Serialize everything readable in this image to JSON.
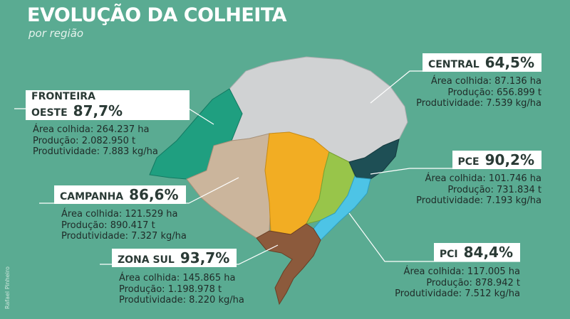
{
  "title": "EVOLUÇÃO DA COLHEITA",
  "subtitle": "por região",
  "credit": "Rafael Pinheiro",
  "colors": {
    "background": "#5aab92",
    "central": "#d0d2d3",
    "fronteira_oeste": "#1f9f80",
    "campanha": "#cbb59c",
    "zona_sul": "#8c5a3c",
    "pce": "#1e4f55",
    "pci": "#4dc4e6",
    "yellow": "#f2ad23",
    "green": "#98c54a"
  },
  "regions": {
    "central": {
      "name": "CENTRAL",
      "pct": "64,5%",
      "area": "Área colhida: 87.136 ha",
      "producao": "Produção: 656.899 t",
      "produtividade": "Produtividade: 7.539 kg/ha"
    },
    "fronteira_oeste": {
      "name": "FRONTEIRA OESTE",
      "pct": "87,7%",
      "area": "Área colhida: 264.237 ha",
      "producao": "Produção: 2.082.950 t",
      "produtividade": "Produtividade: 7.883 kg/ha"
    },
    "pce": {
      "name": "PCE",
      "pct": "90,2%",
      "area": "Área colhida: 101.746 ha",
      "producao": "Produção: 731.834 t",
      "produtividade": "Produtividade: 7.193 kg/ha"
    },
    "campanha": {
      "name": "CAMPANHA",
      "pct": "86,6%",
      "area": "Área colhida: 121.529 ha",
      "producao": "Produção: 890.417 t",
      "produtividade": "Produtividade: 7.327 kg/ha"
    },
    "zona_sul": {
      "name": "ZONA SUL",
      "pct": "93,7%",
      "area": "Área colhida: 145.865 ha",
      "producao": "Produção: 1.198.978 t",
      "produtividade": "Produtividade: 8.220 kg/ha"
    },
    "pci": {
      "name": "PCI",
      "pct": "84,4%",
      "area": "Área colhida: 117.005 ha",
      "producao": "Produção: 878.942 t",
      "produtividade": "Produtividade: 7.512 kg/ha"
    }
  }
}
